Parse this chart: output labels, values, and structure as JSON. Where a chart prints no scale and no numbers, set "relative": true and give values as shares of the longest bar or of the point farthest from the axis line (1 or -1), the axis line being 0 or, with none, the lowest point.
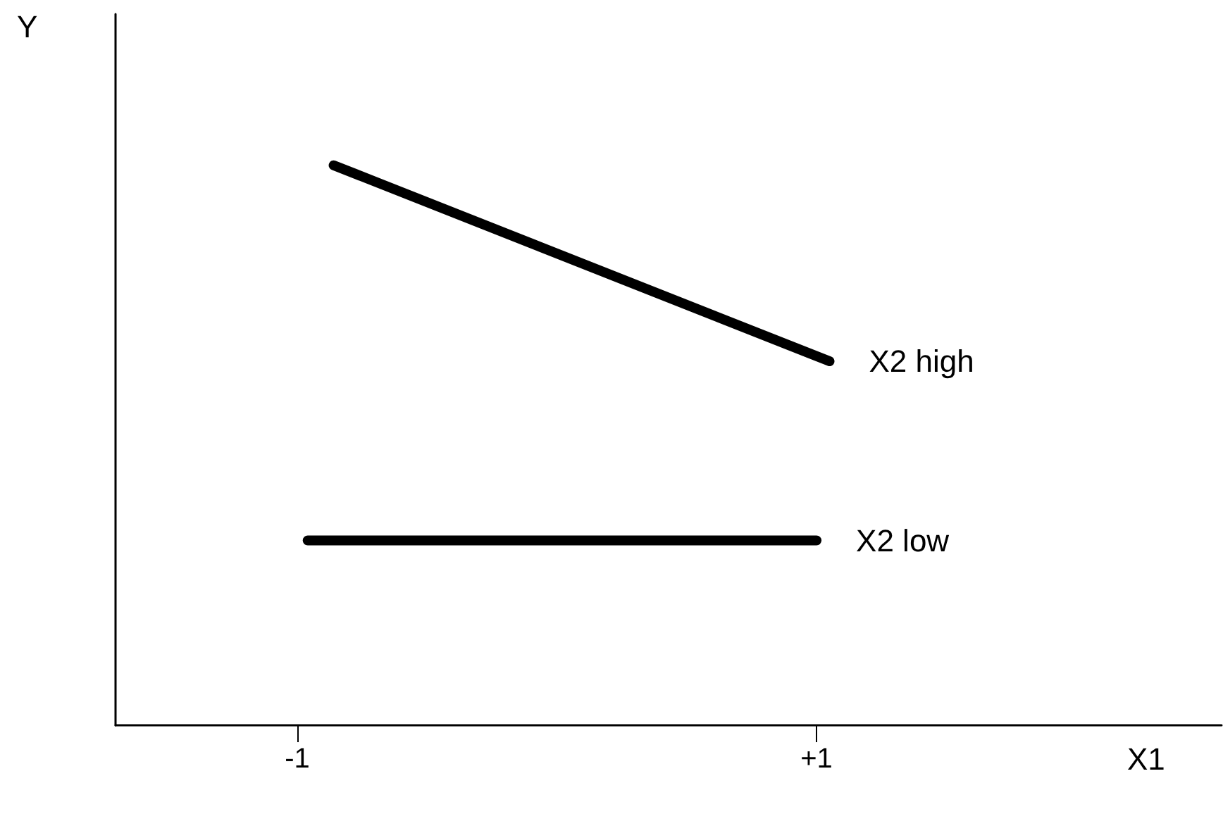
{
  "chart_data": {
    "type": "line",
    "relative": true,
    "xlabel": "X1",
    "ylabel": "Y",
    "xlim": [
      -1.7,
      2.56
    ],
    "xticks": [
      {
        "value": -1,
        "label": "-1"
      },
      {
        "value": 1,
        "label": "+1"
      }
    ],
    "grid": false,
    "legend": false,
    "line_style": "solid",
    "series": [
      {
        "name": "X2 high",
        "color": "#000000",
        "x": [
          -0.86,
          1.05
        ],
        "values": [
          1,
          0.65
        ]
      },
      {
        "name": "X2 low",
        "color": "#000000",
        "x": [
          -0.96,
          1.0
        ],
        "values": [
          0.33,
          0.33
        ]
      }
    ]
  }
}
